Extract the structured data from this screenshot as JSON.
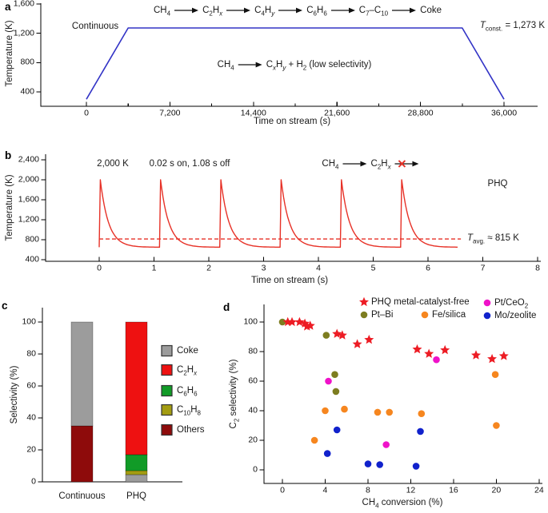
{
  "panels": {
    "a": "a",
    "b": "b",
    "c": "c",
    "d": "d"
  },
  "chart_data": [
    {
      "id": "a",
      "type": "line",
      "xlabel": "Time on stream (s)",
      "ylabel": "Temperature (K)",
      "xlim": [
        0,
        36000
      ],
      "ylim": [
        200,
        1600
      ],
      "xticks": [
        {
          "v": 0,
          "l": "0"
        },
        {
          "v": 7200,
          "l": "7,200"
        },
        {
          "v": 14400,
          "l": "14,400"
        },
        {
          "v": 21600,
          "l": "21,600"
        },
        {
          "v": 28800,
          "l": "28,800"
        },
        {
          "v": 36000,
          "l": "36,000"
        }
      ],
      "xminor": [
        3600,
        10800,
        18000,
        25200,
        32400
      ],
      "yticks": [
        {
          "v": 400,
          "l": "400"
        },
        {
          "v": 800,
          "l": "800"
        },
        {
          "v": 1200,
          "l": "1,200"
        },
        {
          "v": 1600,
          "l": "1,600"
        }
      ],
      "line_color": "#3233c6",
      "profile_points": [
        [
          0,
          300
        ],
        [
          3600,
          1273
        ],
        [
          32400,
          1273
        ],
        [
          36000,
          300
        ]
      ],
      "curve_label": "Continuous",
      "reaction_top": [
        "CH<sub>4</sub>",
        "->",
        "C<sub>2</sub>H<sub><i>x</i></sub>",
        "->",
        "C<sub>4</sub>H<sub><i>y</i></sub>",
        "->",
        "C<sub>6</sub>H<sub>6</sub>",
        "->",
        "C<sub>7</sub>–C<sub>10</sub>",
        "->",
        "Coke"
      ],
      "reaction_mid": [
        "CH<sub>4</sub>",
        "->",
        "C<sub><i>x</i></sub>H<sub><i>y</i></sub> + H<sub>2</sub> (low selectivity)"
      ],
      "t_const_label": "<i>T</i><sub>const.</sub> = 1,273 K"
    },
    {
      "id": "b",
      "type": "line",
      "xlabel": "Time on stream (s)",
      "ylabel": "Temperature (K)",
      "xlim": [
        0,
        8
      ],
      "ylim": [
        400,
        2400
      ],
      "xticks": [
        {
          "v": 0,
          "l": "0"
        },
        {
          "v": 1,
          "l": "1"
        },
        {
          "v": 2,
          "l": "2"
        },
        {
          "v": 3,
          "l": "3"
        },
        {
          "v": 4,
          "l": "4"
        },
        {
          "v": 5,
          "l": "5"
        },
        {
          "v": 6,
          "l": "6"
        },
        {
          "v": 7,
          "l": "7"
        },
        {
          "v": 8,
          "l": "8"
        }
      ],
      "yticks": [
        {
          "v": 400,
          "l": "400"
        },
        {
          "v": 800,
          "l": "800"
        },
        {
          "v": 1200,
          "l": "1,200"
        },
        {
          "v": 1600,
          "l": "1,600"
        },
        {
          "v": 2000,
          "l": "2,000"
        },
        {
          "v": 2400,
          "l": "2,400"
        }
      ],
      "line_color": "#e73127",
      "pulse": {
        "peak_K": 2000,
        "baseline_K": 650,
        "period_s": 1.1,
        "pulse_count": 6,
        "trace_end_s": 6.55,
        "avg_K": 815
      },
      "peak_label": "2,000 K",
      "duty_label": "0.02 s on, 1.08 s off",
      "reaction": [
        "CH<sub>4</sub>",
        "->",
        "C<sub>2</sub>H<sub><i>x</i></sub>",
        "-x>"
      ],
      "mode_label": "PHQ",
      "t_avg_label": "<i>T</i><sub>avg.</sub> ≈ 815 K"
    },
    {
      "id": "c",
      "type": "bar",
      "stacked": true,
      "ylabel": "Selectivity (%)",
      "ylim": [
        0,
        100
      ],
      "yticks": [
        {
          "v": 0,
          "l": "0"
        },
        {
          "v": 20,
          "l": "20"
        },
        {
          "v": 40,
          "l": "40"
        },
        {
          "v": 60,
          "l": "60"
        },
        {
          "v": 80,
          "l": "80"
        },
        {
          "v": 100,
          "l": "100"
        }
      ],
      "categories": [
        "Continuous",
        "PHQ"
      ],
      "bars": [
        {
          "category": "Continuous",
          "segments": [
            {
              "key": "Others",
              "value": 35
            },
            {
              "key": "Coke",
              "value": 65
            }
          ]
        },
        {
          "category": "PHQ",
          "segments": [
            {
              "key": "Coke",
              "value": 4.5
            },
            {
              "key": "C10H8",
              "value": 2.5
            },
            {
              "key": "C6H6",
              "value": 10
            },
            {
              "key": "C2Hx",
              "value": 83
            }
          ]
        }
      ],
      "legend": [
        {
          "key": "Coke",
          "label": "Coke",
          "color": "#9c9c9c"
        },
        {
          "key": "C2Hx",
          "label": "C<sub>2</sub>H<sub><i>x</i></sub>",
          "color": "#ee1111"
        },
        {
          "key": "C6H6",
          "label": "C<sub>6</sub>H<sub>6</sub>",
          "color": "#119b27"
        },
        {
          "key": "C10H8",
          "label": "C<sub>10</sub>H<sub>8</sub>",
          "color": "#a39c11"
        },
        {
          "key": "Others",
          "label": "Others",
          "color": "#8e0b0b"
        }
      ]
    },
    {
      "id": "d",
      "type": "scatter",
      "xlabel": "CH<sub>4</sub> conversion (%)",
      "ylabel": "C<sub>2</sub> selectivity (%)",
      "xlim": [
        0,
        24
      ],
      "ylim": [
        0,
        100
      ],
      "xticks": [
        {
          "v": 0,
          "l": "0"
        },
        {
          "v": 4,
          "l": "4"
        },
        {
          "v": 8,
          "l": "8"
        },
        {
          "v": 12,
          "l": "12"
        },
        {
          "v": 16,
          "l": "16"
        },
        {
          "v": 20,
          "l": "20"
        },
        {
          "v": 24,
          "l": "24"
        }
      ],
      "yticks": [
        {
          "v": 0,
          "l": "0"
        },
        {
          "v": 20,
          "l": "20"
        },
        {
          "v": 40,
          "l": "40"
        },
        {
          "v": 60,
          "l": "60"
        },
        {
          "v": 80,
          "l": "80"
        },
        {
          "v": 100,
          "l": "100"
        }
      ],
      "series": [
        {
          "name": "PHQ metal-catalyst-free",
          "label": "PHQ metal-catalyst-free",
          "marker": "star",
          "color": "#ed1c24",
          "points": [
            [
              0.5,
              100
            ],
            [
              0.9,
              100
            ],
            [
              1.6,
              100
            ],
            [
              2.1,
              99
            ],
            [
              2.3,
              97
            ],
            [
              2.6,
              97.5
            ],
            [
              5.1,
              92
            ],
            [
              5.6,
              91
            ],
            [
              7.0,
              85
            ],
            [
              8.1,
              88
            ],
            [
              12.6,
              81.5
            ],
            [
              13.7,
              78.5
            ],
            [
              15.2,
              81
            ],
            [
              18.1,
              77.5
            ],
            [
              19.6,
              75
            ],
            [
              20.7,
              77
            ]
          ]
        },
        {
          "name": "Pt-Bi",
          "label": "Pt–Bi",
          "marker": "circle",
          "color": "#7d7d20",
          "points": [
            [
              0,
              100
            ],
            [
              4.1,
              91
            ],
            [
              4.9,
              64.5
            ],
            [
              5.0,
              53
            ]
          ]
        },
        {
          "name": "Fe/silica",
          "label": "Fe/silica",
          "marker": "circle",
          "color": "#f6861f",
          "points": [
            [
              3,
              20
            ],
            [
              4,
              40
            ],
            [
              5.8,
              41
            ],
            [
              8.9,
              39
            ],
            [
              10,
              39
            ],
            [
              13,
              38
            ],
            [
              19.9,
              64.5
            ],
            [
              20,
              30
            ]
          ]
        },
        {
          "name": "Pt/CeO2",
          "label": "Pt/CeO<sub>2</sub>",
          "marker": "circle",
          "color": "#ef12c9",
          "points": [
            [
              4.3,
              60
            ],
            [
              9.7,
              17
            ],
            [
              14.4,
              74.5
            ]
          ]
        },
        {
          "name": "Mo/zeolite",
          "label": "Mo/zeolite",
          "marker": "circle",
          "color": "#1122cc",
          "points": [
            [
              4.2,
              11
            ],
            [
              5.1,
              27
            ],
            [
              8.0,
              4
            ],
            [
              9.1,
              3.5
            ],
            [
              12.5,
              2.5
            ],
            [
              12.9,
              26
            ]
          ]
        }
      ]
    }
  ]
}
